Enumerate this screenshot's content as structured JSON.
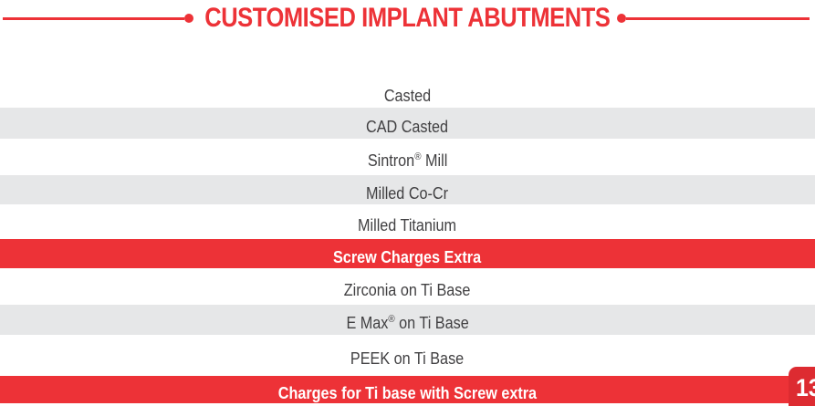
{
  "header": {
    "title": "CUSTOMISED IMPLANT ABUTMENTS"
  },
  "rows": [
    {
      "pre": "Casted",
      "sup": "",
      "post": ""
    },
    {
      "pre": "CAD Casted",
      "sup": "",
      "post": ""
    },
    {
      "pre": "Sintron",
      "sup": "®",
      "post": " Mill"
    },
    {
      "pre": "Milled Co-Cr",
      "sup": "",
      "post": ""
    },
    {
      "pre": "Milled Titanium",
      "sup": "",
      "post": ""
    },
    {
      "pre": "Screw Charges Extra",
      "sup": "",
      "post": ""
    },
    {
      "pre": "Zirconia on Ti Base",
      "sup": "",
      "post": ""
    },
    {
      "pre": "E Max",
      "sup": "®",
      "post": " on Ti Base"
    },
    {
      "pre": "PEEK on Ti Base",
      "sup": "",
      "post": ""
    },
    {
      "pre": "Charges for Ti base with Screw extra",
      "sup": "",
      "post": ""
    }
  ],
  "page_number": "13",
  "colors": {
    "accent_red": "#ED3237",
    "stripe_gray": "#E6E7E8",
    "tab_red": "#DD2B31",
    "text_gray": "#414042"
  }
}
